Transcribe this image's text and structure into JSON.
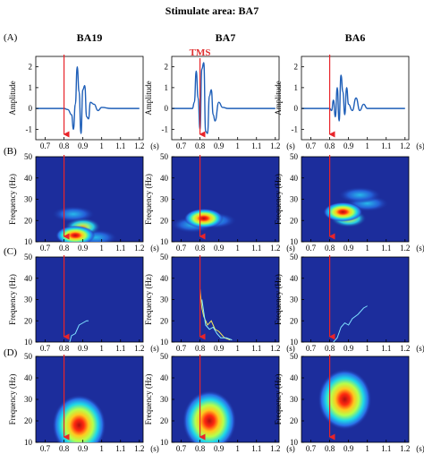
{
  "title": "Stimulate area:  BA7",
  "panel_labels": [
    "(A)",
    "(B)",
    "(C)",
    "(D)"
  ],
  "columns": [
    "BA19",
    "BA7",
    "BA6"
  ],
  "tms_label": "TMS",
  "x_ticks": [
    "0.7",
    "0.8",
    "0.9",
    "1",
    "1.1",
    "1.2"
  ],
  "x_unit": "(s)",
  "amp_ylabel": "Amplitude",
  "freq_ylabel": "Frequency (Hz)",
  "amp_ticks": [
    "2",
    "1",
    "0",
    "-1"
  ],
  "freq_ticks": [
    "50",
    "40",
    "30",
    "20",
    "10"
  ],
  "colors": {
    "tms_arrow": "#e8242a",
    "trace": "#1f5fb8",
    "spectro_bg": "#1c2d9c",
    "tms_text": "#e03030"
  },
  "chart_data": [
    {
      "type": "line",
      "row": "(A)",
      "ylabel": "Amplitude",
      "xlim": [
        0.65,
        1.22
      ],
      "ylim": [
        -1.5,
        2.5
      ],
      "tms_time": 0.8,
      "series": [
        {
          "column": "BA19",
          "x": [
            0.65,
            0.8,
            0.82,
            0.84,
            0.85,
            0.86,
            0.87,
            0.88,
            0.89,
            0.9,
            0.91,
            0.92,
            0.93,
            0.94,
            0.96,
            0.98,
            1.0,
            1.05,
            1.2
          ],
          "y": [
            0,
            0,
            -0.05,
            -0.3,
            -1.0,
            0.2,
            2.0,
            0.8,
            -1.2,
            0.9,
            1.1,
            -0.4,
            -0.5,
            0.3,
            0.2,
            -0.1,
            0.05,
            0,
            0
          ]
        },
        {
          "column": "BA7",
          "x": [
            0.65,
            0.76,
            0.77,
            0.78,
            0.79,
            0.8,
            0.81,
            0.82,
            0.83,
            0.84,
            0.85,
            0.86,
            0.87,
            0.88,
            0.9,
            0.92,
            0.95,
            1.0,
            1.2
          ],
          "y": [
            0,
            0,
            0.3,
            1.8,
            0.5,
            -1.0,
            1.9,
            2.2,
            -1.1,
            -1.2,
            0.6,
            0.9,
            -0.3,
            -0.6,
            0.3,
            0.05,
            0,
            0,
            0
          ]
        },
        {
          "column": "BA6",
          "x": [
            0.65,
            0.8,
            0.81,
            0.82,
            0.83,
            0.84,
            0.85,
            0.86,
            0.87,
            0.88,
            0.89,
            0.9,
            0.92,
            0.94,
            0.96,
            0.98,
            1.0,
            1.05,
            1.2
          ],
          "y": [
            0,
            0,
            -0.1,
            0.4,
            -0.4,
            1.0,
            -0.6,
            1.6,
            0.8,
            -0.3,
            1.0,
            0.2,
            -0.1,
            0.5,
            -0.1,
            0.2,
            0,
            0,
            0
          ]
        }
      ]
    },
    {
      "type": "heatmap",
      "row": "(B)",
      "ylabel": "Frequency (Hz)",
      "ylim": [
        10,
        50
      ],
      "blobs": [
        {
          "column": "BA19",
          "t": 0.86,
          "f": 13,
          "level": 1.0
        },
        {
          "column": "BA19",
          "t": 0.9,
          "f": 17,
          "level": 0.7
        },
        {
          "column": "BA19",
          "t": 0.85,
          "f": 23,
          "level": 0.5
        },
        {
          "column": "BA19",
          "t": 0.97,
          "f": 12,
          "level": 0.5
        },
        {
          "column": "BA7",
          "t": 0.82,
          "f": 21,
          "level": 0.9
        },
        {
          "column": "BA7",
          "t": 0.88,
          "f": 20,
          "level": 0.45
        },
        {
          "column": "BA7",
          "t": 0.76,
          "f": 18,
          "level": 0.3
        },
        {
          "column": "BA6",
          "t": 0.87,
          "f": 24,
          "level": 0.95
        },
        {
          "column": "BA6",
          "t": 0.9,
          "f": 21,
          "level": 0.7
        },
        {
          "column": "BA6",
          "t": 0.96,
          "f": 32,
          "level": 0.45
        },
        {
          "column": "BA6",
          "t": 1.0,
          "f": 28,
          "level": 0.4
        }
      ]
    },
    {
      "type": "line",
      "row": "(C)",
      "ylabel": "Frequency (Hz)",
      "ylim": [
        10,
        50
      ],
      "series": [
        {
          "column": "BA19",
          "name": "",
          "x": [
            0.83,
            0.84,
            0.86,
            0.88,
            0.9,
            0.92,
            0.93
          ],
          "y": [
            10,
            13,
            14,
            18,
            19,
            20,
            20
          ]
        },
        {
          "column": "BA7",
          "name": "",
          "x": [
            0.8,
            0.81,
            0.82,
            0.84,
            0.86,
            0.88,
            0.9,
            0.93,
            0.96
          ],
          "y": [
            35,
            26,
            22,
            18,
            20,
            16,
            15,
            12,
            11
          ]
        },
        {
          "column": "BA7",
          "name": "",
          "x": [
            0.81,
            0.83,
            0.85,
            0.87,
            0.89,
            0.91,
            0.94,
            0.97
          ],
          "y": [
            30,
            18,
            16,
            17,
            14,
            12,
            12,
            11
          ]
        },
        {
          "column": "BA6",
          "name": "",
          "x": [
            0.82,
            0.84,
            0.86,
            0.88,
            0.9,
            0.92,
            0.95,
            0.98,
            1.0
          ],
          "y": [
            10,
            12,
            17,
            19,
            18,
            21,
            23,
            26,
            27
          ]
        }
      ]
    },
    {
      "type": "heatmap",
      "row": "(D)",
      "ylabel": "Frequency (Hz)",
      "ylim": [
        10,
        50
      ],
      "blobs": [
        {
          "column": "BA19",
          "t": 0.88,
          "f": 18,
          "level": 1.0
        },
        {
          "column": "BA7",
          "t": 0.85,
          "f": 20,
          "level": 1.0
        },
        {
          "column": "BA6",
          "t": 0.88,
          "f": 30,
          "level": 1.0
        }
      ]
    }
  ]
}
